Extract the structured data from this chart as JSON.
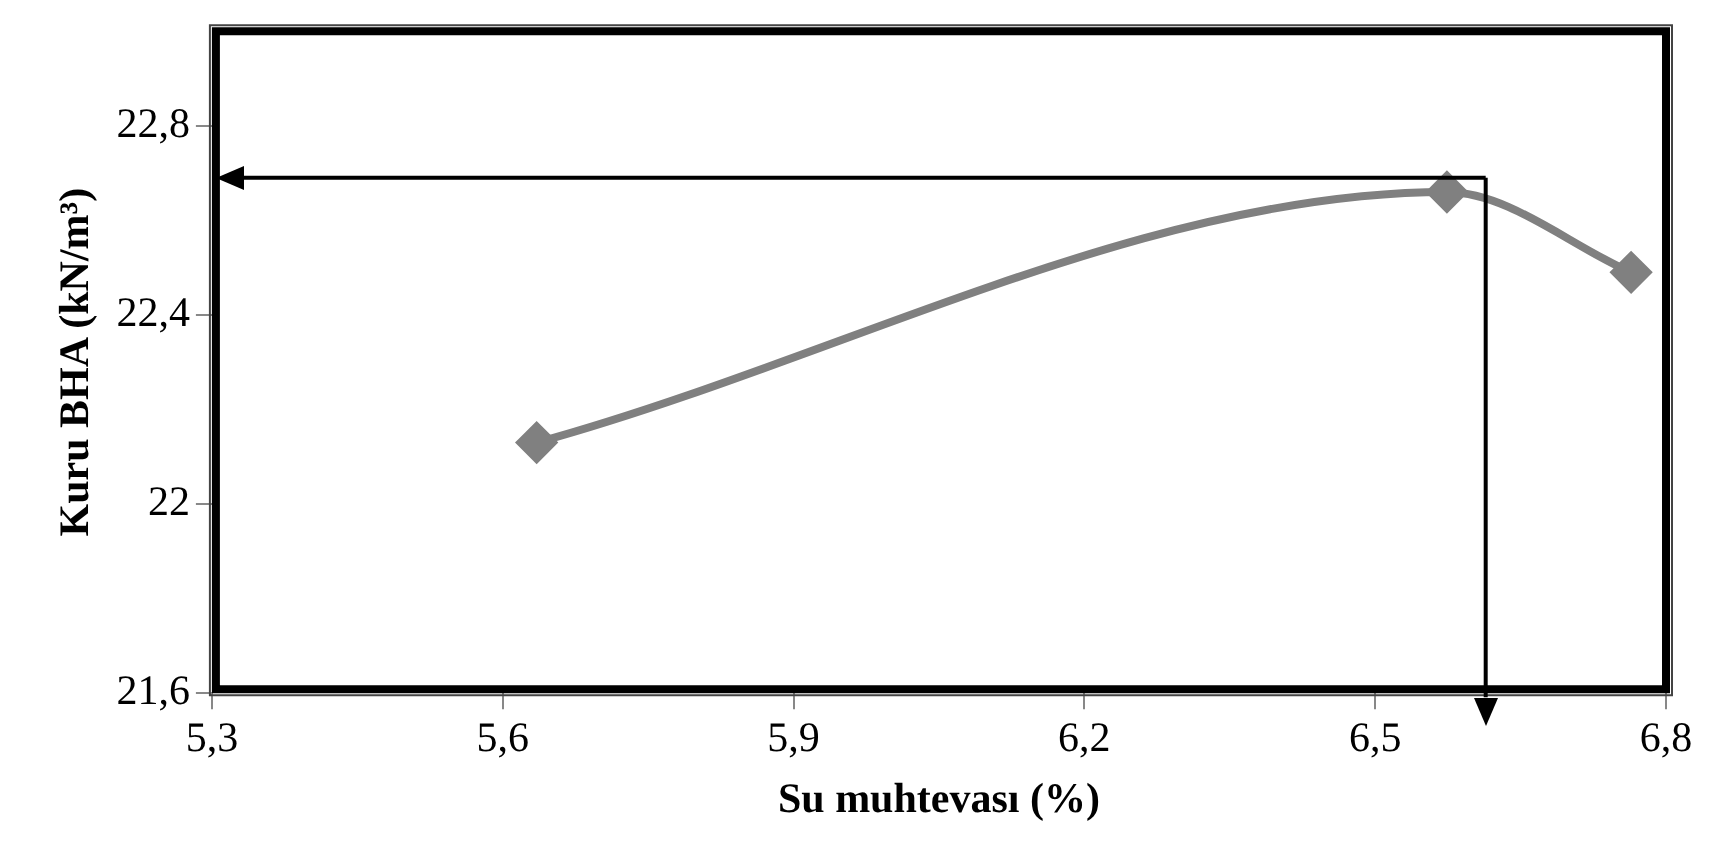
{
  "chart_data": {
    "type": "line",
    "xlabel": "Su muhtevası (%)",
    "ylabel": "Kuru BHA (kN/m³)",
    "x": [
      5.635,
      6.574,
      6.764
    ],
    "series": [
      {
        "color": "#808080",
        "values": [
          22.13,
          22.66,
          22.49
        ]
      }
    ],
    "xlim": [
      5.3,
      6.8
    ],
    "xticks": [
      {
        "value": 5.3,
        "label": "5,3"
      },
      {
        "value": 5.6,
        "label": "5,6"
      },
      {
        "value": 5.9,
        "label": "5,9"
      },
      {
        "value": 6.2,
        "label": "6,2"
      },
      {
        "value": 6.5,
        "label": "6,5"
      },
      {
        "value": 6.8,
        "label": "6,8"
      }
    ],
    "ylim": [
      21.6,
      23.0
    ],
    "yticks": [
      {
        "value": 21.6,
        "label": "21,6"
      },
      {
        "value": 22,
        "label": "22"
      },
      {
        "value": 22.4,
        "label": "22,4"
      },
      {
        "value": 22.8,
        "label": "22,8"
      }
    ],
    "ref_lines": [
      {
        "axis": "y",
        "value": 22.69,
        "color": "#000000"
      },
      {
        "axis": "x",
        "value": 6.614,
        "color": "#000000"
      }
    ],
    "marker": "diamond",
    "grid": false,
    "legend": false
  }
}
